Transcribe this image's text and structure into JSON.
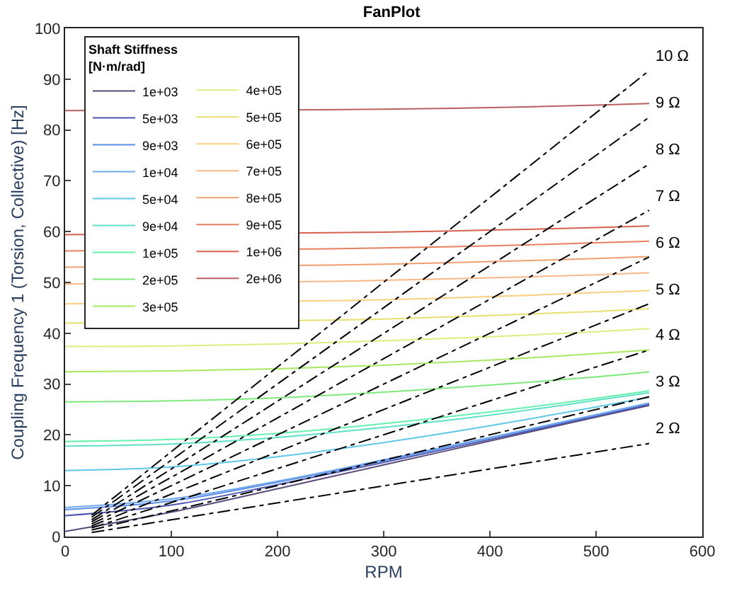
{
  "chart_data": {
    "type": "line",
    "title": "FanPlot",
    "xlabel": "RPM",
    "ylabel": "Coupling Frequency 1 (Torsion, Collective) [Hz]",
    "legend_title": "Shaft Stiffness [N·m/rad]",
    "x": [
      0,
      100,
      200,
      300,
      400,
      500,
      550
    ],
    "xlim": [
      0,
      600
    ],
    "xticks": [
      0,
      100,
      200,
      300,
      400,
      500,
      600
    ],
    "ylim": [
      0,
      100
    ],
    "yticks": [
      0,
      10,
      20,
      30,
      40,
      50,
      60,
      70,
      80,
      90,
      100
    ],
    "grid": false,
    "legend": "top left",
    "marker": "none",
    "line_style": "solid",
    "series": [
      {
        "name": "1e+03",
        "color": "#5a4a7a",
        "values": [
          1,
          4.8,
          9.4,
          14.1,
          18.8,
          23.5,
          25.8
        ]
      },
      {
        "name": "5e+03",
        "color": "#4a55b0",
        "values": [
          4.1,
          6.2,
          10.2,
          14.6,
          19.1,
          23.7,
          26.0
        ]
      },
      {
        "name": "9e+03",
        "color": "#5b8ee8",
        "values": [
          5.3,
          7.0,
          10.7,
          14.9,
          19.4,
          23.9,
          26.2
        ]
      },
      {
        "name": "1e+04",
        "color": "#70a8f0",
        "values": [
          5.7,
          7.4,
          10.9,
          15.1,
          19.5,
          24.0,
          26.3
        ]
      },
      {
        "name": "5e+04",
        "color": "#5fc8e8",
        "values": [
          13.0,
          13.7,
          15.7,
          18.5,
          21.8,
          25.5,
          27.4
        ]
      },
      {
        "name": "9e+04",
        "color": "#5ee0c8",
        "values": [
          17.8,
          18.2,
          19.5,
          21.5,
          23.9,
          26.8,
          28.3
        ]
      },
      {
        "name": "1e+05",
        "color": "#66f0b0",
        "values": [
          18.7,
          19.1,
          20.3,
          22.2,
          24.5,
          27.2,
          28.7
        ]
      },
      {
        "name": "2e+05",
        "color": "#7ee87a",
        "values": [
          26.5,
          26.7,
          27.3,
          28.4,
          29.8,
          31.4,
          32.4
        ]
      },
      {
        "name": "3e+05",
        "color": "#a8e860",
        "values": [
          32.4,
          32.6,
          33.0,
          33.7,
          34.7,
          36.0,
          36.7
        ]
      },
      {
        "name": "4e+05",
        "color": "#d8f080",
        "values": [
          37.4,
          37.5,
          37.9,
          38.5,
          39.3,
          40.3,
          40.9
        ]
      },
      {
        "name": "5e+05",
        "color": "#e8e070",
        "x": [
          0,
          250,
          300,
          400,
          500,
          550
        ],
        "values": [
          42.0,
          42.6,
          42.8,
          43.5,
          44.3,
          44.8
        ]
      },
      {
        "name": "6e+05",
        "color": "#f8d080",
        "x": [
          0,
          250,
          300,
          400,
          500,
          550
        ],
        "values": [
          45.8,
          46.4,
          46.6,
          47.2,
          48.0,
          48.4
        ]
      },
      {
        "name": "7e+05",
        "color": "#f8b888",
        "x": [
          0,
          250,
          300,
          400,
          500,
          550
        ],
        "values": [
          49.7,
          50.2,
          50.4,
          50.9,
          51.5,
          51.9
        ]
      },
      {
        "name": "8e+05",
        "color": "#f0a070",
        "x": [
          0,
          250,
          300,
          400,
          500,
          550
        ],
        "values": [
          53.0,
          53.4,
          53.6,
          54.1,
          54.7,
          55.1
        ]
      },
      {
        "name": "9e+05",
        "color": "#e88060",
        "x": [
          0,
          250,
          300,
          400,
          500,
          550
        ],
        "values": [
          56.2,
          56.6,
          56.8,
          57.2,
          57.8,
          58.1
        ]
      },
      {
        "name": "1e+06",
        "color": "#d86050",
        "x": [
          0,
          250,
          300,
          400,
          500,
          550
        ],
        "values": [
          59.4,
          59.8,
          59.9,
          60.3,
          60.8,
          61.1
        ]
      },
      {
        "name": "2e+06",
        "color": "#b86060",
        "x": [
          0,
          250,
          300,
          400,
          500,
          550
        ],
        "values": [
          83.8,
          84.0,
          84.1,
          84.4,
          84.9,
          85.2
        ]
      },
      {
        "name": "2 Ω",
        "color": "#000000",
        "line_style": "dashed",
        "x": [
          25,
          550
        ],
        "values": [
          0.8,
          18.3
        ]
      },
      {
        "name": "3 Ω",
        "color": "#000000",
        "line_style": "dashed",
        "x": [
          25,
          550
        ],
        "values": [
          1.3,
          27.5
        ]
      },
      {
        "name": "4 Ω",
        "color": "#000000",
        "line_style": "dashed",
        "x": [
          25,
          550
        ],
        "values": [
          1.7,
          36.7
        ]
      },
      {
        "name": "5 Ω",
        "color": "#000000",
        "line_style": "dashed",
        "x": [
          25,
          550
        ],
        "values": [
          2.1,
          45.8
        ]
      },
      {
        "name": "6 Ω",
        "color": "#000000",
        "line_style": "dashed",
        "x": [
          25,
          550
        ],
        "values": [
          2.5,
          55.0
        ]
      },
      {
        "name": "7 Ω",
        "color": "#000000",
        "line_style": "dashed",
        "x": [
          25,
          550
        ],
        "values": [
          2.9,
          64.2
        ]
      },
      {
        "name": "8 Ω",
        "color": "#000000",
        "line_style": "dashed",
        "x": [
          25,
          550
        ],
        "values": [
          3.3,
          73.3
        ]
      },
      {
        "name": "9 Ω",
        "color": "#000000",
        "line_style": "dashed",
        "x": [
          25,
          550
        ],
        "values": [
          3.8,
          82.5
        ]
      },
      {
        "name": "10 Ω",
        "color": "#000000",
        "line_style": "dashed",
        "x": [
          25,
          550
        ],
        "values": [
          4.2,
          91.7
        ]
      }
    ]
  }
}
